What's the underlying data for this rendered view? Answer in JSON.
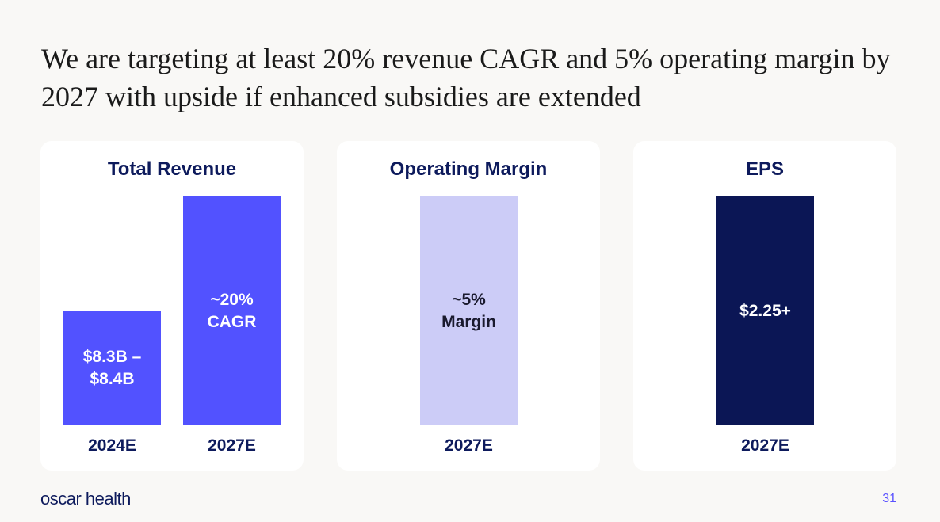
{
  "slide": {
    "title": "We are targeting at least 20% revenue CAGR and 5% operating margin by 2027 with upside if enhanced subsidies are extended",
    "logo_text": "oscar health",
    "page_number": "31"
  },
  "colors": {
    "revenue_bar": "#5252ff",
    "margin_bar": "#ccccf7",
    "eps_bar": "#0b1655",
    "title_text": "#0d1a5c",
    "page_number": "#5a52ff"
  },
  "chart_data": [
    {
      "type": "bar",
      "title": "Total Revenue",
      "categories": [
        "2024E",
        "2027E"
      ],
      "values": [
        8.35,
        16.7
      ],
      "data_labels": [
        "$8.3B –\n$8.4B",
        "~20%\nCAGR"
      ],
      "ylim": [
        0,
        16.7
      ],
      "xlabel": "",
      "ylabel": ""
    },
    {
      "type": "bar",
      "title": "Operating Margin",
      "categories": [
        "2027E"
      ],
      "values": [
        5
      ],
      "data_labels": [
        "~5%\nMargin"
      ],
      "ylim": [
        0,
        5
      ],
      "xlabel": "",
      "ylabel": ""
    },
    {
      "type": "bar",
      "title": "EPS",
      "categories": [
        "2027E"
      ],
      "values": [
        2.25
      ],
      "data_labels": [
        "$2.25+"
      ],
      "ylim": [
        0,
        2.25
      ],
      "xlabel": "",
      "ylabel": ""
    }
  ]
}
